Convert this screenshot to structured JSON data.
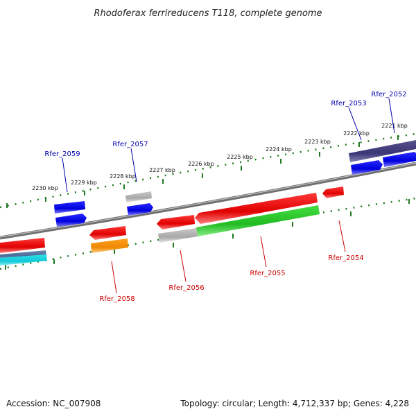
{
  "title": "Rhodoferax ferrireducens T118, complete genome",
  "footer": {
    "accession": "Accession: NC_007908",
    "summary": "Topology: circular; Length: 4,712,337 bp; Genes: 4,228"
  },
  "colors": {
    "backbone": "#808080",
    "forward_label": "#0000aa",
    "reverse_label": "#cc0000",
    "tick": "#1f7a1f"
  },
  "kbp_ticks": [
    "2230 kbp",
    "2229 kbp",
    "2228 kbp",
    "2227 kbp",
    "2226 kbp",
    "2225 kbp",
    "2224 kbp",
    "2223 kbp",
    "2222 kbp",
    "2221 kbp"
  ],
  "gene_labels": [
    {
      "name": "Rfer_2052",
      "strand": "forward"
    },
    {
      "name": "Rfer_2053",
      "strand": "forward"
    },
    {
      "name": "Rfer_2057",
      "strand": "forward"
    },
    {
      "name": "Rfer_2059",
      "strand": "forward"
    },
    {
      "name": "Rfer_2054",
      "strand": "reverse"
    },
    {
      "name": "Rfer_2055",
      "strand": "reverse"
    },
    {
      "name": "Rfer_2056",
      "strand": "reverse"
    },
    {
      "name": "Rfer_2058",
      "strand": "reverse"
    }
  ]
}
